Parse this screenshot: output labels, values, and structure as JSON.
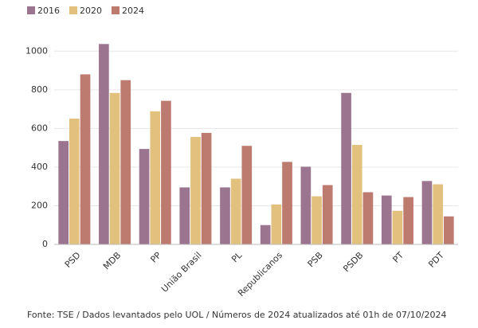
{
  "chart_data": {
    "type": "bar",
    "categories": [
      "PSD",
      "MDB",
      "PP",
      "União Brasil",
      "PL",
      "Republicanos",
      "PSB",
      "PSDB",
      "PT",
      "PDT"
    ],
    "series": [
      {
        "name": "2016",
        "color": "#9b7590",
        "values": [
          535,
          1037,
          494,
          295,
          295,
          100,
          402,
          784,
          253,
          328
        ]
      },
      {
        "name": "2020",
        "color": "#e2c07e",
        "values": [
          651,
          784,
          689,
          556,
          340,
          207,
          249,
          515,
          174,
          311
        ]
      },
      {
        "name": "2024",
        "color": "#bd7b70",
        "values": [
          880,
          850,
          743,
          577,
          510,
          427,
          307,
          270,
          245,
          145
        ]
      }
    ],
    "ylim": [
      0,
      1100
    ],
    "yticks": [
      0,
      200,
      400,
      600,
      800,
      1000
    ],
    "grid": true,
    "legend": "top-left",
    "note": "Fonte: TSE / Dados levantados pelo UOL / Números de 2024 atualizados até 01h de 07/10/2024"
  }
}
